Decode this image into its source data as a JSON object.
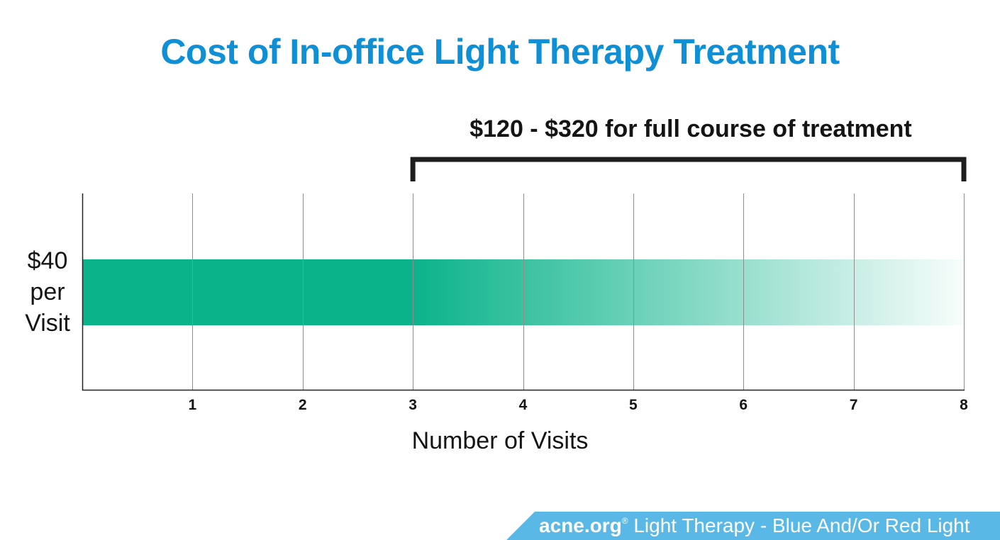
{
  "page": {
    "title": "Cost of In-office Light Therapy Treatment",
    "bracket_label": "$120 - $320 for full course of treatment",
    "y_label_lines": [
      "$40",
      "per",
      "Visit"
    ],
    "footer_brand": "acne.org",
    "footer_reg": "®",
    "footer_text": "Light Therapy - Blue And/Or Red Light"
  },
  "chart_data": {
    "type": "bar",
    "orientation": "horizontal",
    "title": "Cost of In-office Light Therapy Treatment",
    "xlabel": "Number of Visits",
    "ylabel": "$40 per Visit",
    "x_ticks": [
      1,
      2,
      3,
      4,
      5,
      6,
      7,
      8
    ],
    "xlim": [
      0,
      8
    ],
    "grid": true,
    "bar": {
      "label": "$40 per Visit",
      "cost_per_visit": 40,
      "solid_to_visits": 3,
      "fade_to_visits": 8,
      "color": "#0bb38a"
    },
    "bracket": {
      "from_visits": 3,
      "to_visits": 8,
      "label": "$120 - $320 for full course of treatment",
      "min_cost": 120,
      "max_cost": 320
    }
  },
  "colors": {
    "title": "#0e8fd6",
    "bar": "#0bb38a",
    "footer": "#5ab8e6",
    "text": "#141414"
  }
}
